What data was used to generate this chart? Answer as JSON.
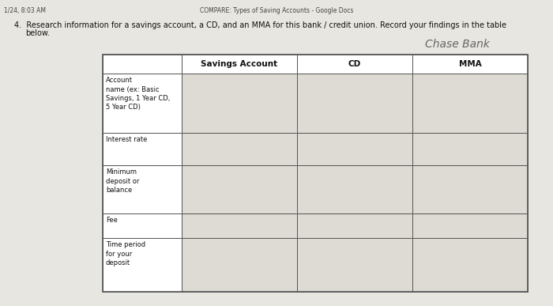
{
  "header_text": "1/24, 8:03 AM",
  "center_header": "COMPARE: Types of Saving Accounts - Google Docs",
  "question_text": "4.  Research information for a savings account, a CD, and an MMA for this bank / credit union. Record your findings in the table\n    below.",
  "handwritten_text": "Chase Bank",
  "col_headers": [
    "Savings Account",
    "CD",
    "MMA"
  ],
  "row_labels": [
    "Account\nname (ex: Basic\nSavings, 1 Year CD,\n5 Year CD)",
    "Interest rate",
    "Minimum\ndeposit or\nbalance",
    "Fee",
    "Time period\nfor your\ndeposit"
  ],
  "background_color": "#d6d4d0",
  "page_color": "#e8e6e0",
  "header_row_bg": "#ffffff",
  "label_cell_bg": "#ffffff",
  "data_cell_bg": "#dedad4",
  "border_color": "#555555",
  "text_color": "#111111",
  "header_text_color": "#444444",
  "fig_width": 7.0,
  "fig_height": 3.87
}
